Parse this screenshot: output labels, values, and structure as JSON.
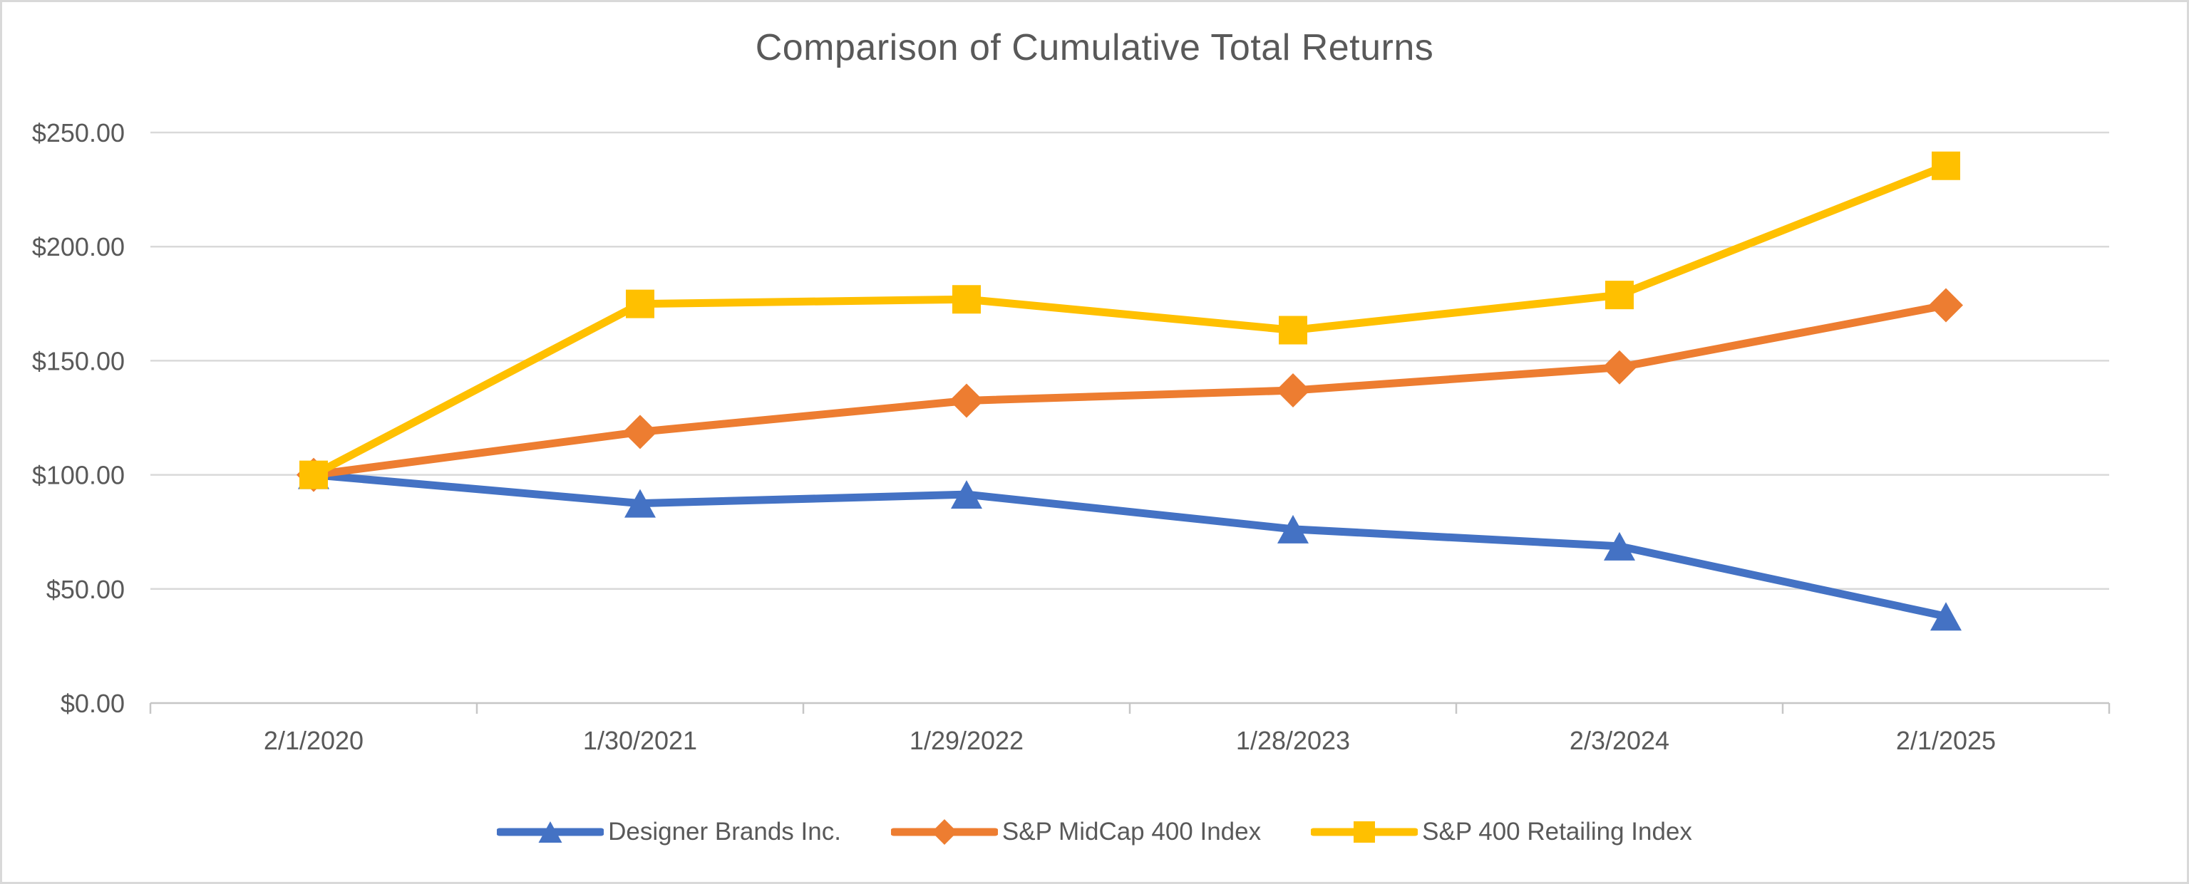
{
  "chart_data": {
    "type": "line",
    "title": "Comparison of Cumulative Total Returns",
    "categories": [
      "2/1/2020",
      "1/30/2021",
      "1/29/2022",
      "1/28/2023",
      "2/3/2024",
      "2/1/2025"
    ],
    "series": [
      {
        "name": "Designer Brands Inc.",
        "color": "#4472C4",
        "marker": "triangle",
        "values": [
          100.0,
          87.5,
          91.4,
          76.2,
          68.7,
          38.0
        ]
      },
      {
        "name": "S&P MidCap 400 Index",
        "color": "#ED7D31",
        "marker": "diamond",
        "values": [
          100.0,
          118.8,
          132.5,
          137.0,
          147.1,
          174.3
        ]
      },
      {
        "name": "S&P 400 Retailing Index",
        "color": "#FFC000",
        "marker": "square",
        "values": [
          100.0,
          174.9,
          176.9,
          163.4,
          178.8,
          235.4
        ]
      }
    ],
    "y_axis": {
      "min": 0,
      "max": 250,
      "step": 50,
      "tick_labels": [
        "$0.00",
        "$50.00",
        "$100.00",
        "$150.00",
        "$200.00",
        "$250.00"
      ]
    },
    "x_axis": {
      "tick_marks": "between-categories"
    },
    "grid": true,
    "legend_position": "bottom",
    "colors": {
      "text": "#595959",
      "gridline": "#D9D9D9",
      "axis": "#C6C6C6",
      "frame_border": "#D9D9D9",
      "background": "#FFFFFF"
    }
  }
}
